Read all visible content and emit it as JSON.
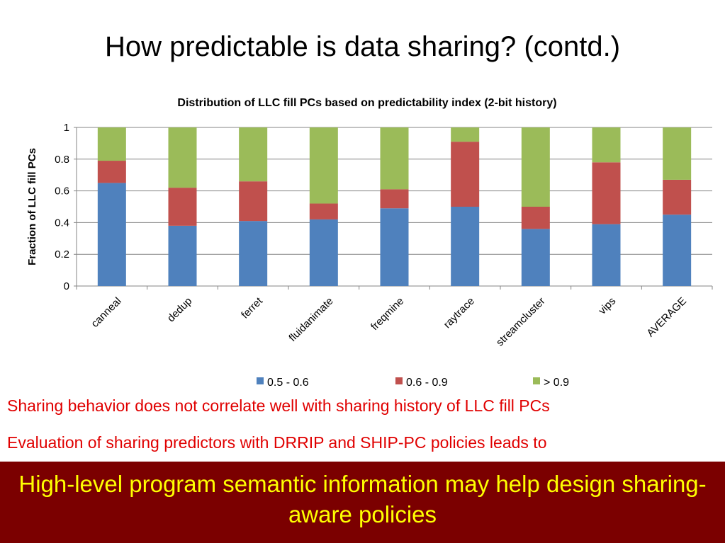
{
  "slide_title": "How predictable is data sharing? (contd.)",
  "chart_data": {
    "type": "bar",
    "stacked": true,
    "title": "Distribution of LLC fill PCs based on predictability index (2-bit history)",
    "xlabel": "",
    "ylabel": "Fraction of LLC fill PCs",
    "ylim": [
      0,
      1
    ],
    "yticks": [
      "0",
      "0.2",
      "0.4",
      "0.6",
      "0.8",
      "1"
    ],
    "grid": true,
    "legend_position": "bottom",
    "categories": [
      "canneal",
      "dedup",
      "ferret",
      "fluidanimate",
      "freqmine",
      "raytrace",
      "streamcluster",
      "vips",
      "AVERAGE"
    ],
    "series": [
      {
        "name": "0.5 - 0.6",
        "color": "#4f81bd",
        "values": [
          0.65,
          0.38,
          0.41,
          0.42,
          0.49,
          0.5,
          0.36,
          0.39,
          0.45
        ]
      },
      {
        "name": "0.6 - 0.9",
        "color": "#c0504d",
        "values": [
          0.14,
          0.24,
          0.25,
          0.1,
          0.12,
          0.41,
          0.14,
          0.39,
          0.22
        ]
      },
      {
        "name": "> 0.9",
        "color": "#9bbb59",
        "values": [
          0.21,
          0.38,
          0.34,
          0.48,
          0.39,
          0.09,
          0.5,
          0.22,
          0.33
        ]
      }
    ]
  },
  "bullets": [
    "Sharing behavior does not correlate well with sharing history of LLC fill PCs",
    "Evaluation of sharing predictors with DRRIP and SHIP-PC policies leads to"
  ],
  "banner": "High-level program semantic information may help design sharing-aware policies"
}
